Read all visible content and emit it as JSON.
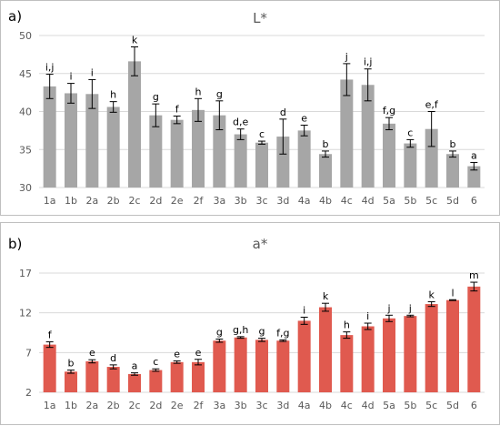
{
  "chart_data": [
    {
      "type": "bar",
      "panel_label": "a)",
      "title": "L*",
      "categories": [
        "1a",
        "1b",
        "2a",
        "2b",
        "2c",
        "2d",
        "2e",
        "2f",
        "3a",
        "3b",
        "3c",
        "3d",
        "4a",
        "4b",
        "4c",
        "4d",
        "5a",
        "5b",
        "5c",
        "5d",
        "6"
      ],
      "values": [
        43.3,
        42.4,
        42.3,
        40.6,
        46.6,
        39.5,
        38.9,
        40.2,
        39.5,
        37.0,
        35.9,
        36.7,
        37.5,
        34.4,
        44.2,
        43.5,
        38.4,
        35.8,
        37.7,
        34.4,
        32.8
      ],
      "errors": [
        1.6,
        1.3,
        1.9,
        0.7,
        1.9,
        1.5,
        0.5,
        1.5,
        1.9,
        0.7,
        0.2,
        2.3,
        0.7,
        0.4,
        2.1,
        2.1,
        0.8,
        0.5,
        2.3,
        0.4,
        0.5
      ],
      "significance_letters": [
        "i,j",
        "i",
        "i",
        "h",
        "k",
        "g",
        "f",
        "h",
        "g",
        "d,e",
        "c",
        "d",
        "e",
        "b",
        "j",
        "i,j",
        "f,g",
        "c",
        "e,f",
        "b",
        "a"
      ],
      "ylim": [
        30,
        50
      ],
      "yticks": [
        30,
        35,
        40,
        45,
        50
      ],
      "grid": true,
      "legend": "none",
      "color": "#a6a6a6"
    },
    {
      "type": "bar",
      "panel_label": "b)",
      "title": "a*",
      "categories": [
        "1a",
        "1b",
        "2a",
        "2b",
        "2c",
        "2d",
        "2e",
        "2f",
        "3a",
        "3b",
        "3c",
        "3d",
        "4a",
        "4b",
        "4c",
        "4d",
        "5a",
        "5b",
        "5c",
        "5d",
        "6"
      ],
      "values": [
        8.0,
        4.6,
        5.9,
        5.2,
        4.3,
        4.8,
        5.8,
        5.8,
        8.5,
        8.9,
        8.6,
        8.5,
        11.0,
        12.7,
        9.2,
        10.3,
        11.3,
        11.6,
        13.1,
        13.6,
        15.3
      ],
      "errors": [
        0.35,
        0.2,
        0.2,
        0.25,
        0.15,
        0.15,
        0.15,
        0.35,
        0.2,
        0.1,
        0.2,
        0.1,
        0.45,
        0.5,
        0.4,
        0.4,
        0.4,
        0.1,
        0.3,
        0.05,
        0.55
      ],
      "significance_letters": [
        "f",
        "b",
        "e",
        "d",
        "a",
        "c",
        "e",
        "e",
        "g",
        "g,h",
        "g",
        "f,g",
        "i",
        "k",
        "h",
        "i",
        "j",
        "j",
        "k",
        "l",
        "m"
      ],
      "ylim": [
        2,
        17
      ],
      "yticks": [
        2,
        7,
        12,
        17
      ],
      "grid": true,
      "legend": "none",
      "color": "#e05a4f"
    }
  ]
}
